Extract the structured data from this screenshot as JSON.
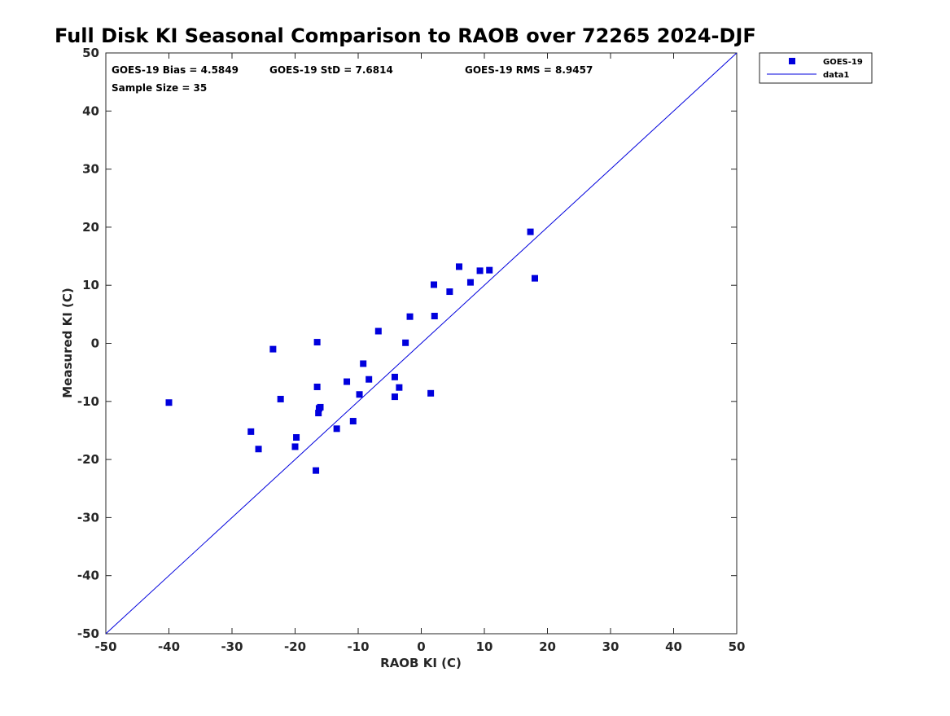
{
  "chart_data": {
    "type": "scatter",
    "title": "Full Disk KI Seasonal Comparison to RAOB over 72265 2024-DJF",
    "xlabel": "RAOB KI (C)",
    "ylabel": "Measured KI (C)",
    "xlim": [
      -50,
      50
    ],
    "ylim": [
      -50,
      50
    ],
    "xticks": [
      -50,
      -40,
      -30,
      -20,
      -10,
      0,
      10,
      20,
      30,
      40,
      50
    ],
    "yticks": [
      -50,
      -40,
      -30,
      -20,
      -10,
      0,
      10,
      20,
      30,
      40,
      50
    ],
    "grid": false,
    "legend_position": "top-right outside",
    "annotations": {
      "bias": "GOES-19 Bias = 4.5849",
      "std": "GOES-19 StD = 7.6814",
      "rms": "GOES-19 RMS = 8.9457",
      "sample": "Sample Size = 35"
    },
    "series": [
      {
        "name": "GOES-19",
        "marker": "square",
        "color": "#0000dd",
        "points": [
          [
            -40,
            -10.2
          ],
          [
            -27,
            -15.2
          ],
          [
            -25.8,
            -18.2
          ],
          [
            -23.5,
            -1
          ],
          [
            -22.3,
            -9.6
          ],
          [
            -19.8,
            -16.2
          ],
          [
            -20,
            -17.8
          ],
          [
            -16.5,
            0.2
          ],
          [
            -16.5,
            -7.5
          ],
          [
            -16.3,
            -12
          ],
          [
            -16,
            -11
          ],
          [
            -16.7,
            -21.9
          ],
          [
            -13.4,
            -14.7
          ],
          [
            -11.8,
            -6.6
          ],
          [
            -10.8,
            -13.4
          ],
          [
            -9.8,
            -8.8
          ],
          [
            -9.2,
            -3.5
          ],
          [
            -8.3,
            -6.2
          ],
          [
            -6.8,
            2.1
          ],
          [
            -4.2,
            -5.8
          ],
          [
            -4.2,
            -9.2
          ],
          [
            -3.5,
            -7.6
          ],
          [
            -2.5,
            0.1
          ],
          [
            -1.8,
            4.6
          ],
          [
            1.5,
            -8.6
          ],
          [
            2,
            10.1
          ],
          [
            2.1,
            4.7
          ],
          [
            4.5,
            8.9
          ],
          [
            6,
            13.2
          ],
          [
            7.8,
            10.5
          ],
          [
            9.3,
            12.5
          ],
          [
            10.8,
            12.6
          ],
          [
            17.3,
            19.2
          ],
          [
            18,
            11.2
          ],
          [
            -16.2,
            -11.2
          ]
        ]
      },
      {
        "name": "data1",
        "type": "line",
        "color": "#0000dd",
        "points": [
          [
            -50,
            -50
          ],
          [
            50,
            50
          ]
        ]
      }
    ]
  }
}
